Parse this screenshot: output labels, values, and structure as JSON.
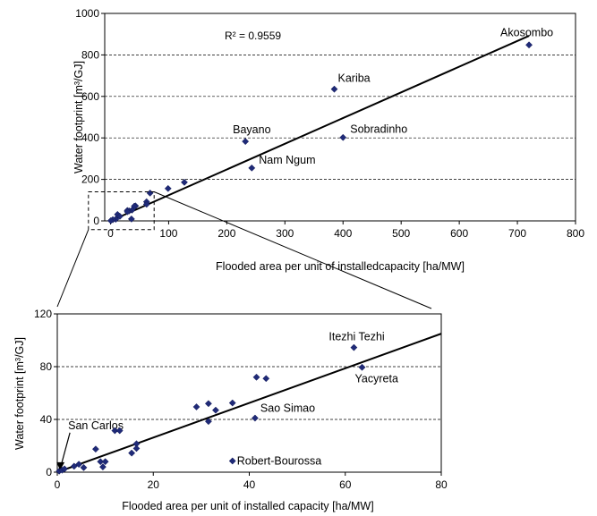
{
  "chart_data": [
    {
      "type": "scatter",
      "title": "",
      "xlabel": "Flooded area per unit of installedcapacity [ha/MW]",
      "ylabel": "Water footprint [m³/GJ]",
      "xlim": [
        -10,
        800
      ],
      "ylim": [
        0,
        1000
      ],
      "xticks": [
        "0",
        "100",
        "200",
        "300",
        "400",
        "500",
        "600",
        "700",
        "800"
      ],
      "yticks": [
        "0",
        "200",
        "400",
        "600",
        "800",
        "1000"
      ],
      "grid": "horizontal dashed",
      "annotation": "R² = 0.9559",
      "trendline": {
        "x": [
          0,
          720
        ],
        "y": [
          0,
          892
        ]
      },
      "zoom_box": {
        "x": [
          -38,
          75
        ],
        "y": [
          -42,
          140
        ]
      },
      "points": [
        {
          "x": 720,
          "y": 848,
          "label": "Akosombo"
        },
        {
          "x": 385,
          "y": 635,
          "label": "Kariba"
        },
        {
          "x": 400,
          "y": 402,
          "label": "Sobradinho"
        },
        {
          "x": 232,
          "y": 383,
          "label": "Bayano"
        },
        {
          "x": 243,
          "y": 255,
          "label": "Nam Ngum"
        },
        {
          "x": 127,
          "y": 186,
          "label": ""
        },
        {
          "x": 99,
          "y": 156,
          "label": ""
        },
        {
          "x": 68,
          "y": 134,
          "label": ""
        },
        {
          "x": 62,
          "y": 92,
          "label": ""
        },
        {
          "x": 62,
          "y": 80,
          "label": ""
        },
        {
          "x": 43,
          "y": 72,
          "label": ""
        },
        {
          "x": 41,
          "y": 71,
          "label": ""
        },
        {
          "x": 37,
          "y": 52,
          "label": ""
        },
        {
          "x": 32,
          "y": 48,
          "label": ""
        },
        {
          "x": 29,
          "y": 50,
          "label": ""
        },
        {
          "x": 29,
          "y": 44,
          "label": ""
        },
        {
          "x": 36,
          "y": 9,
          "label": ""
        },
        {
          "x": 12,
          "y": 31,
          "label": ""
        },
        {
          "x": 16,
          "y": 22,
          "label": ""
        },
        {
          "x": 9,
          "y": 8,
          "label": ""
        },
        {
          "x": 4,
          "y": 6,
          "label": ""
        },
        {
          "x": 0.5,
          "y": 1,
          "label": ""
        }
      ]
    },
    {
      "type": "scatter",
      "title": "",
      "xlabel": "Flooded area per unit of installed capacity [ha/MW]",
      "ylabel": "Water footprint [m³/GJ]",
      "xlim": [
        0,
        80
      ],
      "ylim": [
        0,
        120
      ],
      "xticks": [
        "0",
        "20",
        "40",
        "60",
        "80"
      ],
      "yticks": [
        "0",
        "40",
        "80",
        "120"
      ],
      "grid": "horizontal dashed",
      "trendline": {
        "x": [
          0,
          80
        ],
        "y": [
          0,
          105
        ]
      },
      "points": [
        {
          "x": 61.8,
          "y": 94.5,
          "label": "Itezhi Tezhi"
        },
        {
          "x": 63.5,
          "y": 79.5,
          "label": "Yacyreta"
        },
        {
          "x": 41.2,
          "y": 41,
          "label": "Sao Simao"
        },
        {
          "x": 36.5,
          "y": 8.5,
          "label": "Robert-Bourossa"
        },
        {
          "x": 0.4,
          "y": 0.8,
          "label": "San Carlos"
        },
        {
          "x": 41.5,
          "y": 72,
          "label": ""
        },
        {
          "x": 43.5,
          "y": 71,
          "label": ""
        },
        {
          "x": 36.5,
          "y": 52.5,
          "label": ""
        },
        {
          "x": 33,
          "y": 47,
          "label": ""
        },
        {
          "x": 31.5,
          "y": 52,
          "label": ""
        },
        {
          "x": 29,
          "y": 49.5,
          "label": ""
        },
        {
          "x": 31.5,
          "y": 38.5,
          "label": ""
        },
        {
          "x": 12,
          "y": 31.5,
          "label": ""
        },
        {
          "x": 13,
          "y": 31.5,
          "label": ""
        },
        {
          "x": 16.5,
          "y": 21.5,
          "label": ""
        },
        {
          "x": 16.5,
          "y": 18,
          "label": ""
        },
        {
          "x": 15.5,
          "y": 14.5,
          "label": ""
        },
        {
          "x": 8,
          "y": 17.5,
          "label": ""
        },
        {
          "x": 9,
          "y": 8,
          "label": ""
        },
        {
          "x": 10,
          "y": 8,
          "label": ""
        },
        {
          "x": 9.5,
          "y": 4,
          "label": ""
        },
        {
          "x": 3.5,
          "y": 4.5,
          "label": ""
        },
        {
          "x": 4.5,
          "y": 6,
          "label": ""
        },
        {
          "x": 5.5,
          "y": 3.5,
          "label": ""
        },
        {
          "x": 1,
          "y": 1.5,
          "label": ""
        },
        {
          "x": 1.5,
          "y": 2.5,
          "label": ""
        }
      ]
    }
  ]
}
